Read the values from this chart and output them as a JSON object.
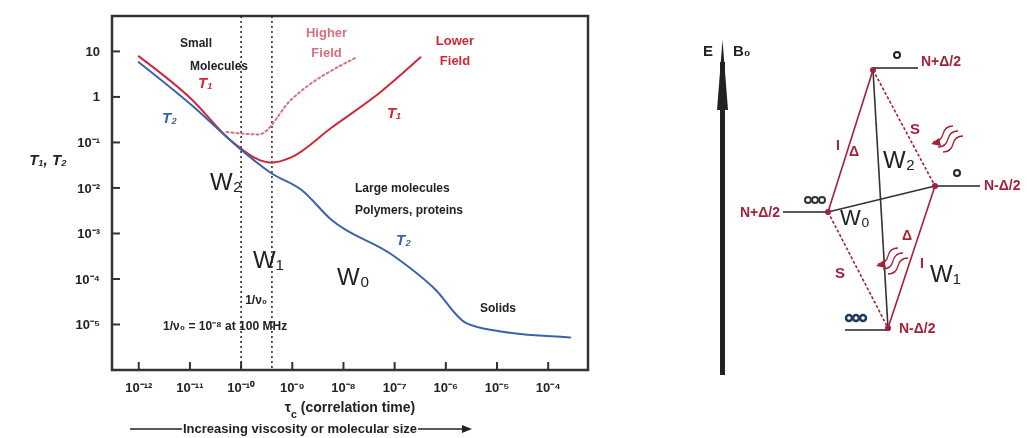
{
  "chart_data": [
    {
      "type": "line",
      "xlabel": "τ$_{c}$ (correlation time)",
      "ylabel": "T₁, T₂",
      "log": "xy",
      "grid": false,
      "marker": "none",
      "xlim": [
        3e-13,
        0.0006
      ],
      "ylim": [
        1e-06,
        60
      ],
      "xticks": [
        {
          "value": 1e-12,
          "label": "10⁻¹²"
        },
        {
          "value": 1e-11,
          "label": "10⁻¹¹"
        },
        {
          "value": 1e-10,
          "label": "10⁻¹⁰"
        },
        {
          "value": 1e-09,
          "label": "10⁻⁹"
        },
        {
          "value": 1e-08,
          "label": "10⁻⁸"
        },
        {
          "value": 1e-07,
          "label": "10⁻⁷"
        },
        {
          "value": 1e-06,
          "label": "10⁻⁶"
        },
        {
          "value": 1e-05,
          "label": "10⁻⁵"
        },
        {
          "value": 0.0001,
          "label": "10⁻⁴"
        }
      ],
      "yticks": [
        10,
        1,
        {
          "value": 0.1,
          "label": "10⁻¹"
        },
        {
          "value": 0.01,
          "label": "10⁻²"
        },
        {
          "value": 0.001,
          "label": "10⁻³"
        },
        {
          "value": 0.0001,
          "label": "10⁻⁴"
        },
        {
          "value": 1e-05,
          "label": "10⁻⁵"
        }
      ],
      "series": [
        {
          "name": "T₁",
          "color": "#cc2a3a",
          "line_style": "solid",
          "x": [
            1e-12,
            1.1e-11,
            6.3e-11,
            3.9e-10,
            9.5e-10,
            5.8e-09,
            5.4e-08,
            3.2e-07
          ],
          "values": [
            7.8,
            0.87,
            0.11,
            0.036,
            0.047,
            0.21,
            1.3,
            7.4
          ]
        },
        {
          "name": "Higher Field",
          "color": "#d9707e",
          "line_style": "dotted",
          "x": [
            5.2e-11,
            2.2e-10,
            9.5e-10,
            1.8e-08
          ],
          "values": [
            0.17,
            0.15,
            0.87,
            7.4
          ]
        },
        {
          "name": "T₂",
          "color": "#3a64a8",
          "line_style": "solid",
          "x": [
            1e-12,
            1.1e-11,
            1.1e-10,
            3.9e-10,
            1.5e-09,
            5.8e-09,
            8.9e-08,
            6.3e-07,
            2.4e-06,
            1.1e-05,
            0.00027
          ],
          "values": [
            5.8,
            0.65,
            0.063,
            0.021,
            0.0091,
            0.002,
            0.00034,
            5.8e-05,
            1.1e-05,
            7.1e-06,
            5.2e-06
          ]
        }
      ],
      "ref_lines": [
        {
          "axis": "x",
          "value": 1e-10,
          "line_style": "dotted",
          "color": "#222222"
        },
        {
          "axis": "x",
          "value": 4e-10,
          "line_style": "dotted",
          "color": "#222222"
        }
      ],
      "annotations": [
        "Small",
        "Molecules",
        "Lower Field",
        "W₂",
        "W₁",
        "W₀",
        "Large molecules",
        "Polymers, proteins",
        "Solids",
        {
          "text": "1/ν₀",
          "x": 1.2e-10,
          "y": 2.8e-05
        },
        "1/ν₀ = 10⁻⁸ at 100 MHz",
        "Increasing viscosity or molecular size"
      ]
    },
    {
      "type": "other",
      "annotations": [
        "E",
        "B₀",
        "N+Δ/2",
        "N-Δ/2",
        "N+Δ/2",
        "N-Δ/2",
        "W₂",
        "W₀",
        "W₁",
        "S",
        "S",
        "Δ",
        "Δ",
        "I",
        "I"
      ]
    }
  ]
}
